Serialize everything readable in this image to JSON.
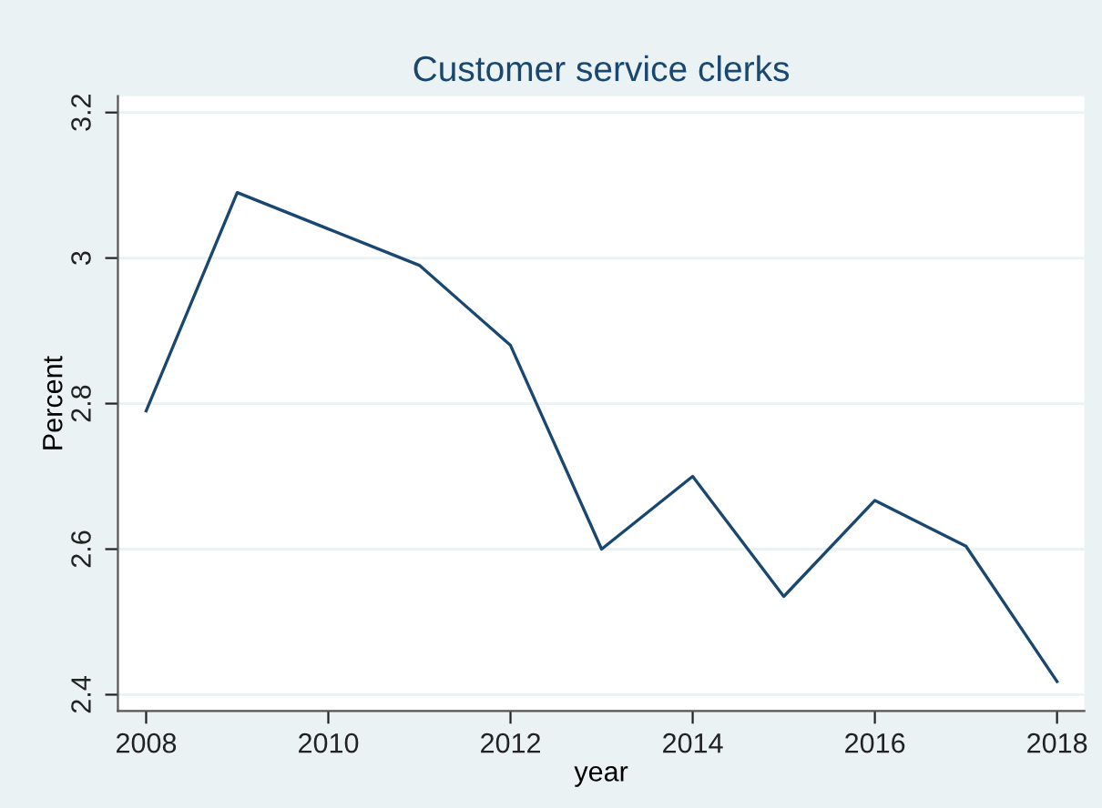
{
  "chart_data": {
    "type": "line",
    "title": "Customer service clerks",
    "xlabel": "year",
    "ylabel": "Percent",
    "x": [
      2008,
      2009,
      2010,
      2011,
      2012,
      2013,
      2014,
      2015,
      2016,
      2017,
      2018
    ],
    "series": [
      {
        "color": "#1a476f",
        "values": [
          2.79,
          3.09,
          3.04,
          2.99,
          2.88,
          2.6,
          2.7,
          2.535,
          2.667,
          2.604,
          2.418
        ]
      }
    ],
    "xlim": [
      2007.69,
      2018.3
    ],
    "xticks": [
      2008,
      2010,
      2012,
      2014,
      2016,
      2018
    ],
    "ylim": [
      2.3775,
      3.2225
    ],
    "yticks": [
      2.4,
      2.6,
      2.8,
      3,
      3.2
    ],
    "grid": "y",
    "marker": "none",
    "line_style": "solid"
  }
}
